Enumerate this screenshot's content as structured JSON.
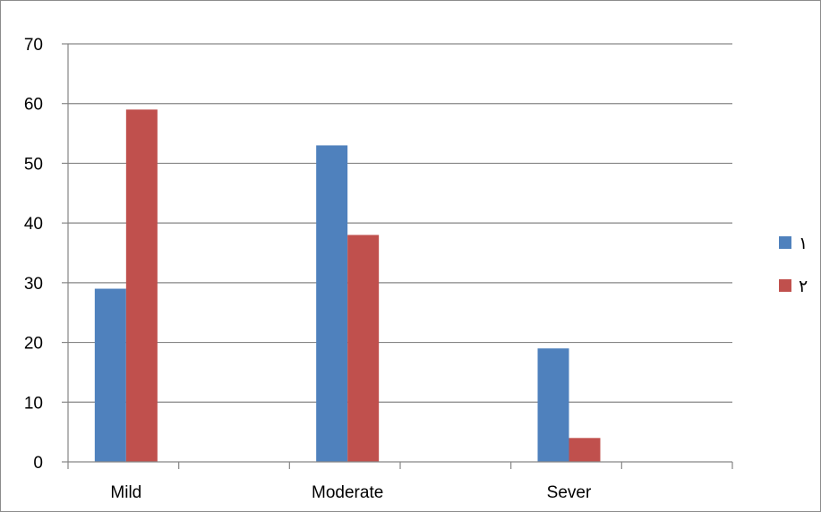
{
  "chart_data": {
    "type": "bar",
    "categories": [
      "Mild",
      "Moderate",
      "Sever"
    ],
    "series": [
      {
        "name": "١",
        "values": [
          29,
          53,
          19
        ],
        "color": "#4F81BD"
      },
      {
        "name": "٢",
        "values": [
          59,
          38,
          4
        ],
        "color": "#C0504D"
      }
    ],
    "ylim": [
      0,
      70
    ],
    "yticks": [
      0,
      10,
      20,
      30,
      40,
      50,
      60,
      70
    ],
    "grid": true,
    "legend_position": "right",
    "title": "",
    "xlabel": "",
    "ylabel": ""
  }
}
